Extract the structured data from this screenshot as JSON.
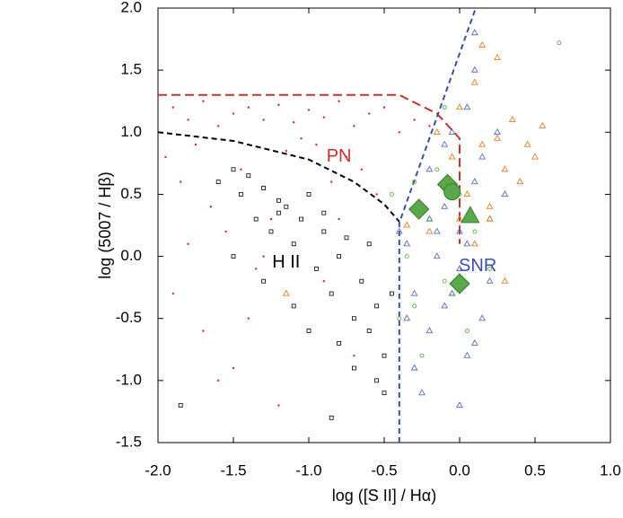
{
  "chart_data": {
    "type": "scatter",
    "xlabel": "log ([S II] / Hα)",
    "ylabel": "log (5007 / Hβ)",
    "xlim": [
      -2.0,
      1.0
    ],
    "ylim": [
      -1.5,
      2.0
    ],
    "xticks": [
      {
        "value": -2.0,
        "label": "-2.0"
      },
      -1.5,
      {
        "value": -1.0,
        "label": "-1.0"
      },
      -0.5,
      {
        "value": 0,
        "label": "0.0"
      },
      0.5,
      {
        "value": 1.0,
        "label": "1.0"
      }
    ],
    "yticks": [
      {
        "value": 2.0,
        "label": "2.0"
      },
      1.5,
      {
        "value": 1.0,
        "label": "1.0"
      },
      0.5,
      {
        "value": 0,
        "label": "0.0"
      },
      -0.5,
      {
        "value": -1.0,
        "label": "-1.0"
      },
      -1.5
    ],
    "series": [
      {
        "color": "#c8302a",
        "marker": "dot",
        "x": [
          -1.9,
          -1.8,
          -1.7,
          -1.6,
          -1.5,
          -1.4,
          -1.3,
          -1.2,
          -1.1,
          -1.0,
          -0.9,
          -0.8,
          -0.7,
          -0.6,
          -0.5,
          -0.4,
          -0.3,
          -0.2,
          -1.95,
          -1.85,
          -1.75,
          -1.65,
          -1.55,
          -1.45,
          -1.35,
          -1.25,
          -1.15,
          -1.05,
          -0.95,
          -0.85,
          -0.75,
          -0.65,
          -0.55,
          -1.9,
          -1.7,
          -1.5,
          -1.3,
          -1.1,
          -0.9,
          -0.7,
          -1.8,
          -1.6,
          -1.4,
          -1.2,
          -1.0,
          -0.8
        ],
        "values": [
          1.2,
          1.1,
          1.25,
          1.05,
          1.15,
          1.2,
          1.1,
          1.22,
          1.08,
          1.18,
          1.12,
          1.25,
          1.05,
          1.15,
          1.2,
          1.0,
          1.1,
          1.05,
          0.8,
          0.6,
          0.9,
          0.4,
          0.2,
          0.7,
          -0.1,
          0.3,
          0.85,
          0.95,
          0.9,
          0.6,
          0.8,
          0.7,
          0.5,
          -0.3,
          -0.6,
          -0.9,
          0.0,
          -0.4,
          -0.2,
          -0.8,
          0.1,
          -1.0,
          -0.5,
          -1.2,
          0.5,
          0.3
        ]
      },
      {
        "color": "#000000",
        "marker": "square",
        "x": [
          -1.6,
          -1.5,
          -1.45,
          -1.4,
          -1.35,
          -1.3,
          -1.25,
          -1.2,
          -1.15,
          -1.1,
          -1.05,
          -1.0,
          -0.95,
          -0.9,
          -0.85,
          -0.8,
          -0.75,
          -0.7,
          -0.65,
          -0.6,
          -0.55,
          -0.5,
          -1.5,
          -1.3,
          -1.2,
          -1.1,
          -1.0,
          -0.9,
          -0.8,
          -0.7,
          -0.6,
          -0.5,
          -0.45,
          -0.55,
          -0.85,
          -1.85
        ],
        "values": [
          0.6,
          0.7,
          0.5,
          0.65,
          0.3,
          0.55,
          0.2,
          0.45,
          0.4,
          0.1,
          0.3,
          0.5,
          -0.1,
          0.2,
          -0.3,
          0.0,
          0.15,
          -0.5,
          -0.2,
          -0.6,
          -0.4,
          -0.8,
          0.0,
          -0.2,
          0.35,
          -0.4,
          -0.6,
          0.35,
          -0.7,
          -0.9,
          0.1,
          -1.1,
          -0.3,
          -1.0,
          -1.3,
          -1.2
        ]
      },
      {
        "color": "#5a6ec0",
        "marker": "triangle",
        "x": [
          -0.35,
          -0.3,
          -0.25,
          -0.2,
          -0.15,
          -0.1,
          -0.05,
          0.0,
          0.05,
          0.1,
          0.15,
          0.2,
          -0.3,
          -0.2,
          -0.1,
          0.0,
          0.1,
          0.2,
          -0.25,
          -0.15,
          -0.05,
          0.05,
          0.15,
          -0.35,
          -0.2,
          0.0,
          0.1,
          -0.1,
          0.05,
          -0.4,
          0.25,
          0.3,
          0.1,
          -0.05
        ],
        "values": [
          0.1,
          -0.3,
          0.4,
          -0.6,
          0.2,
          0.9,
          0.5,
          -0.1,
          1.2,
          0.6,
          -0.5,
          0.3,
          -0.9,
          0.7,
          -0.4,
          0.2,
          1.5,
          -0.2,
          -1.1,
          0.0,
          1.0,
          -0.8,
          0.8,
          -0.5,
          0.3,
          -1.2,
          1.8,
          0.4,
          0.1,
          0.2,
          1.0,
          0.5,
          -0.7,
          -0.3
        ]
      },
      {
        "color": "#e67e22",
        "marker": "triangle",
        "x": [
          -0.15,
          -0.05,
          0.0,
          0.05,
          0.1,
          0.15,
          0.2,
          0.25,
          0.3,
          0.35,
          0.4,
          0.5,
          0.55,
          0.1,
          0.2,
          0.3,
          -0.1,
          0.0,
          0.45,
          0.15,
          -0.2,
          -0.35,
          -1.15,
          0.25
        ],
        "values": [
          1.0,
          0.8,
          1.2,
          0.5,
          1.4,
          0.9,
          0.3,
          1.6,
          0.7,
          1.1,
          0.6,
          0.8,
          1.05,
          0.1,
          0.4,
          -0.2,
          0.6,
          0.3,
          0.9,
          1.7,
          0.2,
          0.25,
          -0.3,
          0.95
        ]
      },
      {
        "color": "#5ab04a",
        "marker": "circle",
        "x": [
          -0.45,
          -0.35,
          -0.3,
          -0.2,
          -0.1,
          0.0,
          0.05,
          -0.25,
          -0.15,
          0.1,
          -0.05,
          -0.3,
          0.66,
          -0.1,
          0.2,
          -0.4
        ],
        "values": [
          0.5,
          0.0,
          -0.4,
          0.3,
          -0.2,
          0.5,
          -0.6,
          -0.8,
          0.7,
          0.2,
          -0.3,
          0.6,
          1.72,
          1.2,
          -0.1,
          -0.5
        ]
      },
      {
        "color": "#5aa84a",
        "marker": "big-diamond",
        "x": [
          -0.27,
          -0.08,
          0.0
        ],
        "values": [
          0.38,
          0.58,
          -0.22
        ]
      },
      {
        "color": "#5aa84a",
        "marker": "big-triangle",
        "x": [
          0.07
        ],
        "values": [
          0.32
        ]
      },
      {
        "color": "#5aa84a",
        "marker": "big-circle",
        "x": [
          -0.05
        ],
        "values": [
          0.52
        ]
      }
    ],
    "lines": [
      {
        "color": "#000000",
        "dash": "6,4",
        "x": [
          -2.0,
          -1.5,
          -1.0,
          -0.7,
          -0.5,
          -0.4
        ],
        "y": [
          1.0,
          0.93,
          0.78,
          0.6,
          0.42,
          0.28
        ]
      },
      {
        "color": "#c8302a",
        "dash": "10,5",
        "x": [
          -2.0,
          -0.4,
          -0.15,
          0.0,
          0.0
        ],
        "y": [
          1.3,
          1.3,
          1.15,
          0.95,
          0.1
        ]
      },
      {
        "color": "#3a4ea8",
        "dash": "6,4",
        "x": [
          -0.4,
          -0.4,
          0.107
        ],
        "y": [
          -1.5,
          0.27,
          2.0
        ]
      }
    ],
    "annotations": [
      {
        "text": "PN",
        "x": -0.8,
        "y": 0.8,
        "color": "#c8302a"
      },
      {
        "text": "H II",
        "x": -1.15,
        "y": -0.05,
        "color": "#000000"
      },
      {
        "text": "SNR",
        "x": 0.12,
        "y": -0.08,
        "color": "#3a4ea8"
      }
    ]
  }
}
